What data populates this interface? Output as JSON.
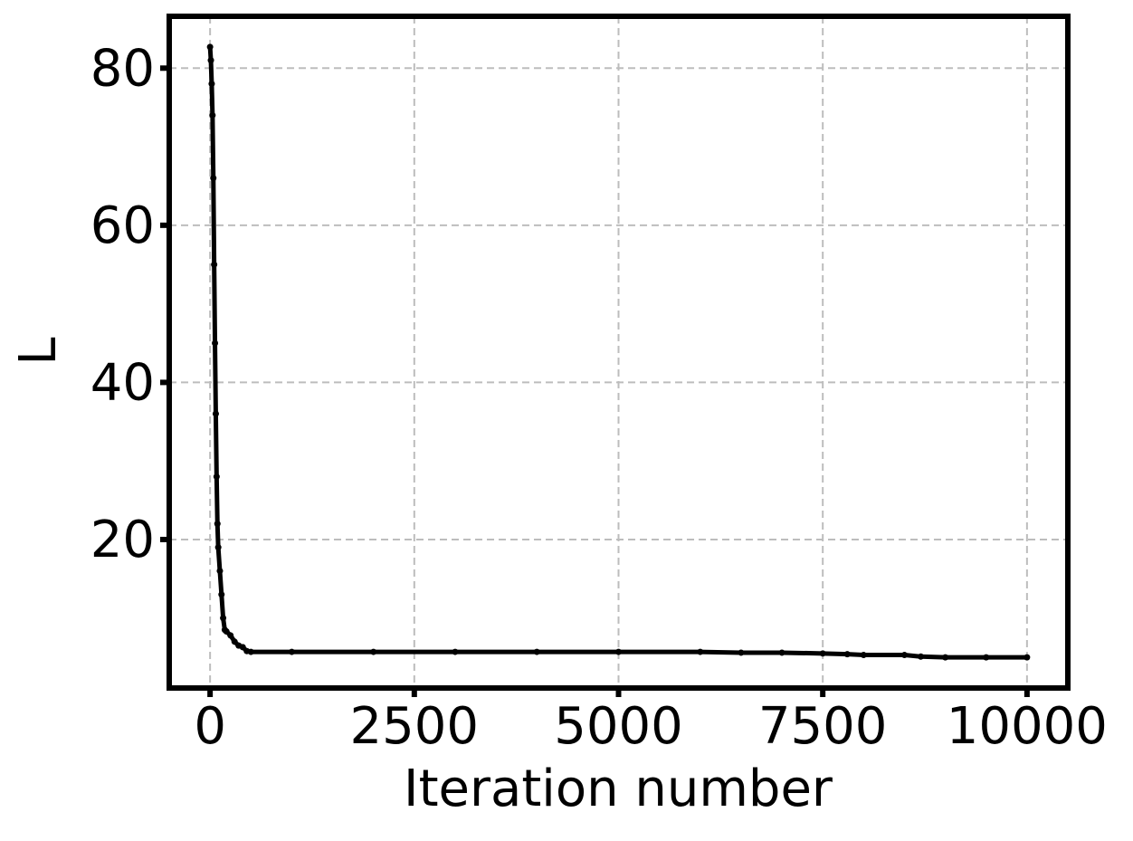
{
  "chart_data": {
    "type": "line",
    "x_label": "Iteration number",
    "y_label": "L",
    "x": [
      0,
      10,
      20,
      30,
      40,
      50,
      60,
      70,
      80,
      90,
      100,
      120,
      140,
      160,
      180,
      200,
      250,
      300,
      350,
      400,
      450,
      500,
      1000,
      2000,
      3000,
      4000,
      5000,
      6000,
      6500,
      7000,
      7500,
      7800,
      8000,
      8500,
      8700,
      9000,
      9500,
      10000
    ],
    "series": [
      {
        "color": "#000000",
        "values": [
          82.7,
          81,
          78,
          74,
          66,
          55,
          45,
          36,
          28,
          22,
          19,
          16,
          13,
          10,
          8.5,
          8.3,
          7.8,
          7,
          6.5,
          6.3,
          5.8,
          5.7,
          5.7,
          5.7,
          5.7,
          5.7,
          5.7,
          5.7,
          5.6,
          5.6,
          5.5,
          5.4,
          5.3,
          5.3,
          5.1,
          5.0,
          5.0,
          5.0
        ]
      }
    ],
    "xlim": [
      -500,
      10500
    ],
    "ylim": [
      1.1,
      86.6
    ],
    "xticks": [
      0,
      2500,
      5000,
      7500,
      10000
    ],
    "yticks": [
      20,
      40,
      60,
      80
    ],
    "grid": true
  }
}
